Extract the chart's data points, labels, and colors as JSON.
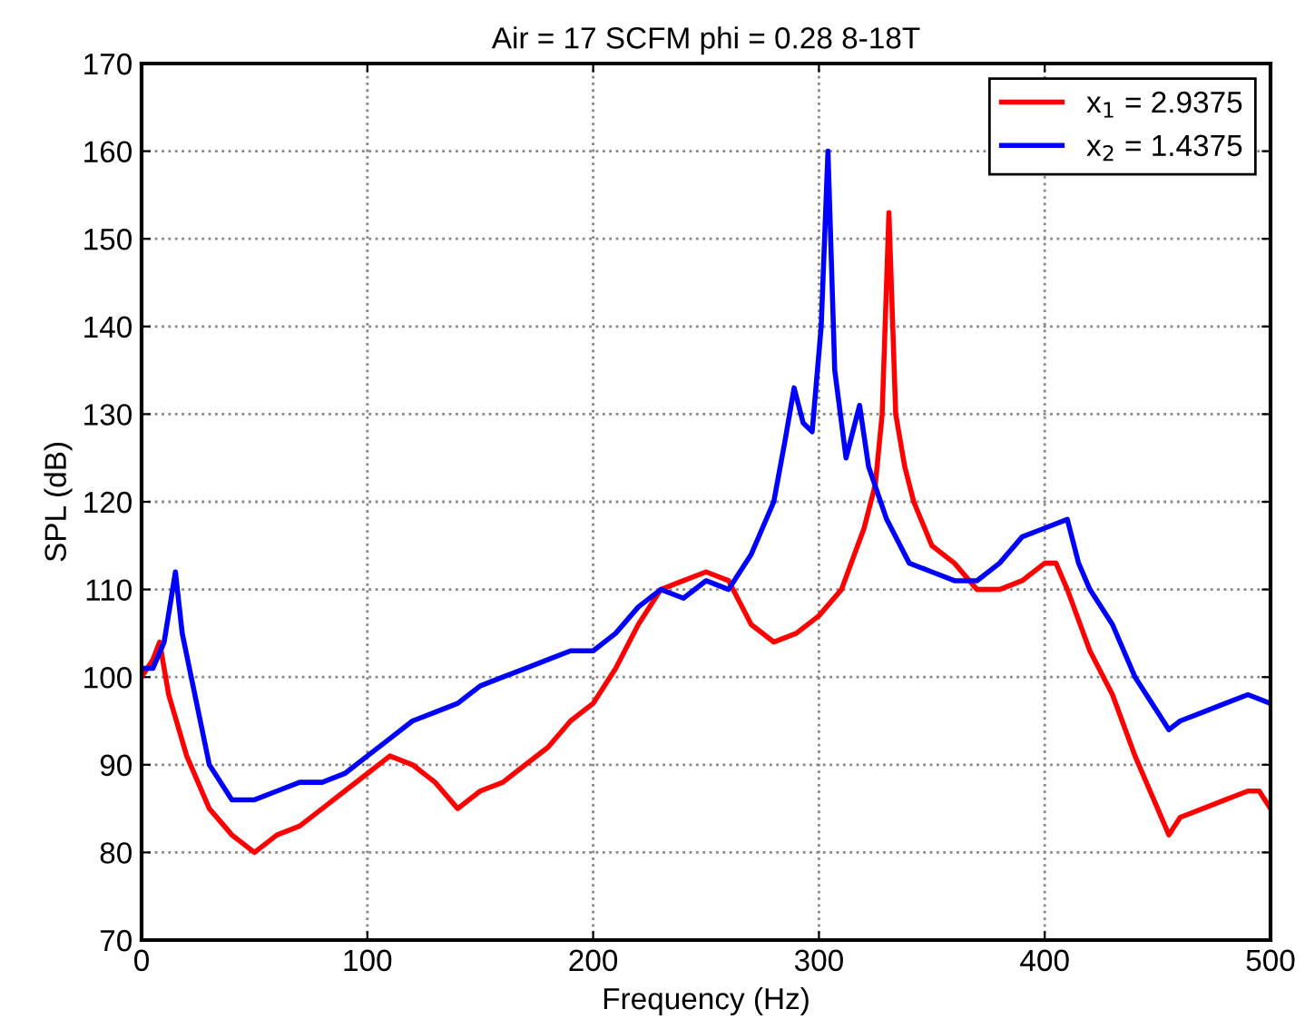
{
  "chart_data": {
    "type": "line",
    "title": "Air = 17 SCFM phi = 0.28 8-18T",
    "xlabel": "Frequency (Hz)",
    "ylabel": "SPL (dB)",
    "xlim": [
      0,
      500
    ],
    "xticks": [
      0,
      100,
      200,
      300,
      400,
      500
    ],
    "ylim": [
      70,
      170
    ],
    "yticks": [
      70,
      80,
      90,
      100,
      110,
      120,
      130,
      140,
      150,
      160,
      170
    ],
    "grid": true,
    "legend": "top right",
    "line_style": "solid",
    "marker": "none",
    "series": [
      {
        "name": "x$_{1}$ = 2.9375",
        "color": "#ff0000",
        "x": [
          0,
          5,
          8,
          12,
          20,
          30,
          40,
          50,
          60,
          70,
          80,
          90,
          100,
          110,
          120,
          130,
          140,
          150,
          160,
          170,
          180,
          190,
          200,
          210,
          220,
          230,
          240,
          250,
          260,
          270,
          280,
          290,
          300,
          310,
          320,
          325,
          328,
          331,
          334,
          338,
          342,
          350,
          360,
          370,
          380,
          390,
          400,
          405,
          410,
          420,
          430,
          440,
          450,
          455,
          460,
          470,
          480,
          490,
          495,
          500
        ],
        "values": [
          100,
          102,
          104,
          98,
          91,
          85,
          82,
          80,
          82,
          83,
          85,
          87,
          89,
          91,
          90,
          88,
          85,
          87,
          88,
          90,
          92,
          95,
          97,
          101,
          106,
          110,
          111,
          112,
          111,
          106,
          104,
          105,
          107,
          110,
          117,
          122,
          130,
          153,
          130,
          124,
          120,
          115,
          113,
          110,
          110,
          111,
          113,
          113,
          110,
          103,
          98,
          91,
          85,
          82,
          84,
          85,
          86,
          87,
          87,
          85
        ]
      },
      {
        "name": "x$_{2}$ = 1.4375",
        "color": "#0000ff",
        "x": [
          0,
          5,
          10,
          15,
          18,
          22,
          30,
          40,
          50,
          60,
          70,
          80,
          90,
          100,
          110,
          120,
          130,
          140,
          150,
          160,
          170,
          180,
          190,
          200,
          210,
          220,
          230,
          240,
          250,
          260,
          270,
          280,
          285,
          289,
          293,
          297,
          301,
          304,
          307,
          312,
          318,
          322,
          330,
          340,
          350,
          360,
          370,
          380,
          390,
          400,
          410,
          415,
          420,
          430,
          440,
          450,
          455,
          460,
          470,
          480,
          490,
          500
        ],
        "values": [
          101,
          101,
          104,
          112,
          105,
          100,
          90,
          86,
          86,
          87,
          88,
          88,
          89,
          91,
          93,
          95,
          96,
          97,
          99,
          100,
          101,
          102,
          103,
          103,
          105,
          108,
          110,
          109,
          111,
          110,
          114,
          120,
          127,
          133,
          129,
          128,
          140,
          160,
          135,
          125,
          131,
          124,
          118,
          113,
          112,
          111,
          111,
          113,
          116,
          117,
          118,
          113,
          110,
          106,
          100,
          96,
          94,
          95,
          96,
          97,
          98,
          97
        ]
      }
    ]
  }
}
